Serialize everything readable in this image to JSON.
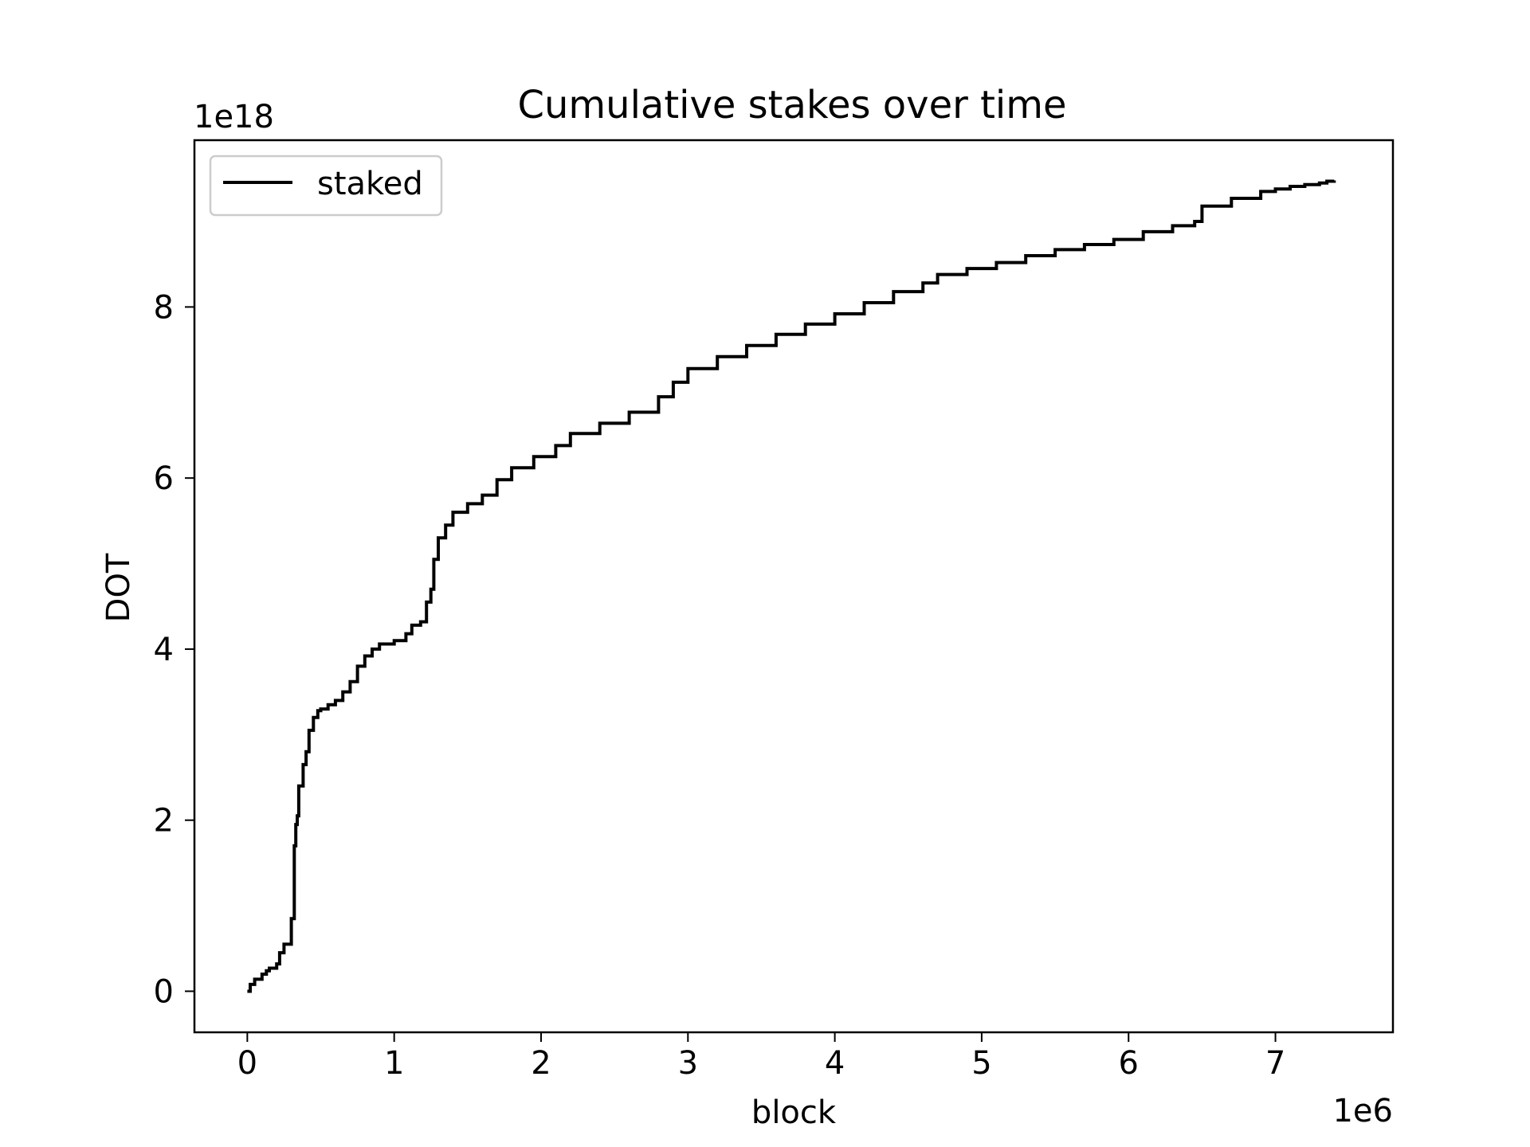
{
  "chart_data": {
    "type": "line",
    "title": "Cumulative stakes over time",
    "xlabel": "block",
    "ylabel": "DOT",
    "x_offset_label": "1e6",
    "y_offset_label": "1e18",
    "xlim": [
      -0.36,
      7.8
    ],
    "ylim": [
      -0.48,
      9.95
    ],
    "x_ticks": [
      0,
      1,
      2,
      3,
      4,
      5,
      6,
      7
    ],
    "x_tick_labels": [
      "0",
      "1",
      "2",
      "3",
      "4",
      "5",
      "6",
      "7"
    ],
    "y_ticks": [
      0,
      2,
      4,
      6,
      8
    ],
    "y_tick_labels": [
      "0",
      "2",
      "4",
      "6",
      "8"
    ],
    "grid": false,
    "legend_position": "upper-left",
    "series": [
      {
        "name": "staked",
        "color": "#000000",
        "x": [
          0.0,
          0.02,
          0.05,
          0.1,
          0.13,
          0.15,
          0.2,
          0.22,
          0.25,
          0.3,
          0.32,
          0.33,
          0.34,
          0.35,
          0.38,
          0.4,
          0.42,
          0.45,
          0.48,
          0.5,
          0.55,
          0.6,
          0.65,
          0.7,
          0.75,
          0.8,
          0.85,
          0.9,
          1.0,
          1.08,
          1.12,
          1.18,
          1.22,
          1.25,
          1.27,
          1.3,
          1.35,
          1.4,
          1.5,
          1.6,
          1.7,
          1.8,
          1.95,
          2.1,
          2.2,
          2.4,
          2.6,
          2.8,
          2.9,
          3.0,
          3.2,
          3.4,
          3.6,
          3.8,
          4.0,
          4.2,
          4.4,
          4.6,
          4.7,
          4.9,
          5.1,
          5.3,
          5.5,
          5.7,
          5.9,
          6.1,
          6.3,
          6.45,
          6.5,
          6.7,
          6.9,
          7.0,
          7.1,
          7.2,
          7.3,
          7.35,
          7.4
        ],
        "y": [
          0.0,
          0.08,
          0.14,
          0.2,
          0.24,
          0.27,
          0.32,
          0.45,
          0.55,
          0.85,
          1.7,
          1.95,
          2.05,
          2.4,
          2.65,
          2.8,
          3.05,
          3.2,
          3.28,
          3.3,
          3.35,
          3.4,
          3.5,
          3.62,
          3.8,
          3.92,
          4.0,
          4.06,
          4.1,
          4.18,
          4.28,
          4.32,
          4.55,
          4.7,
          5.05,
          5.3,
          5.45,
          5.6,
          5.7,
          5.8,
          5.98,
          6.12,
          6.25,
          6.38,
          6.52,
          6.64,
          6.77,
          6.95,
          7.12,
          7.28,
          7.42,
          7.55,
          7.68,
          7.8,
          7.92,
          8.05,
          8.18,
          8.28,
          8.38,
          8.45,
          8.52,
          8.6,
          8.67,
          8.73,
          8.79,
          8.88,
          8.95,
          9.0,
          9.18,
          9.27,
          9.35,
          9.38,
          9.41,
          9.43,
          9.45,
          9.47,
          9.48
        ]
      }
    ]
  }
}
